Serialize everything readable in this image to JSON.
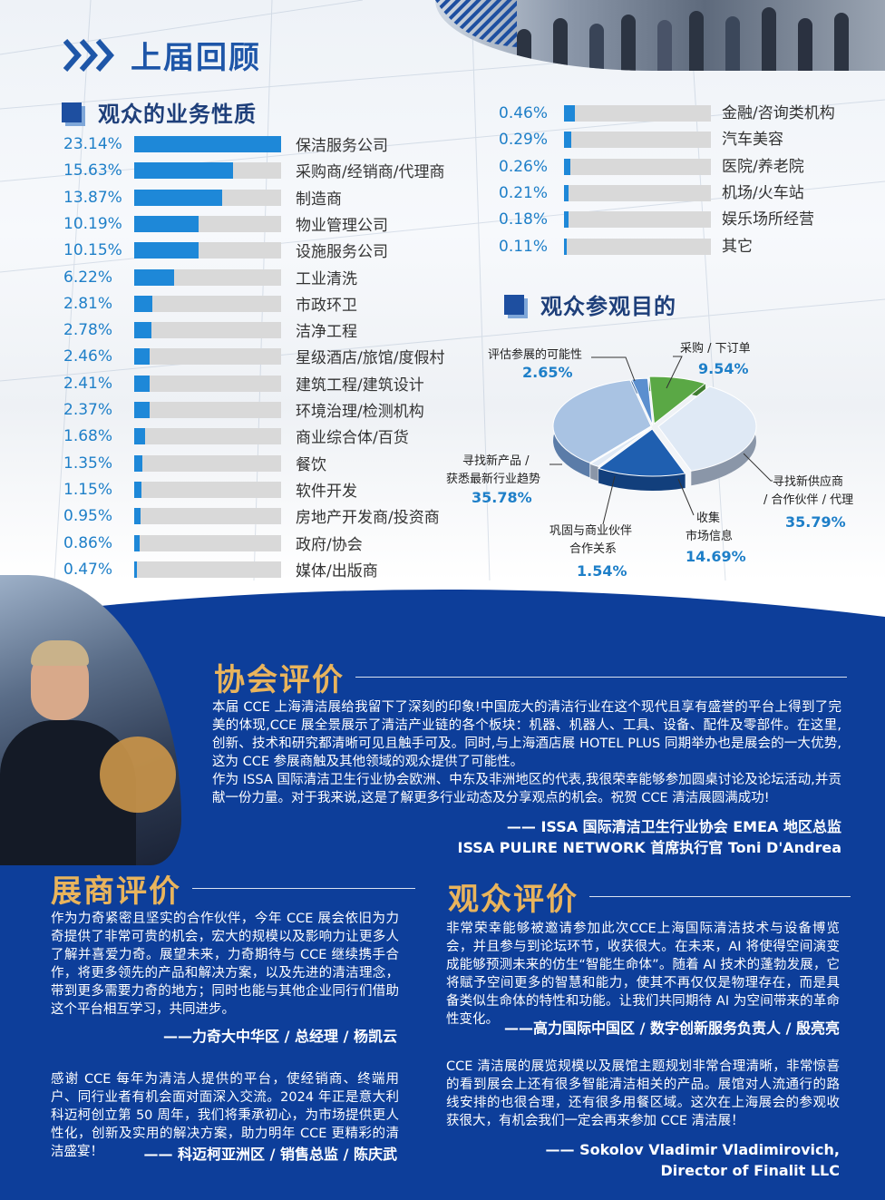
{
  "header": {
    "title": "上届回顾"
  },
  "business": {
    "title": "观众的业务性质",
    "items": [
      {
        "pct": "23.14%",
        "value": 23.14,
        "label": "保洁服务公司"
      },
      {
        "pct": "15.63%",
        "value": 15.63,
        "label": "采购商/经销商/代理商"
      },
      {
        "pct": "13.87%",
        "value": 13.87,
        "label": "制造商"
      },
      {
        "pct": "10.19%",
        "value": 10.19,
        "label": "物业管理公司"
      },
      {
        "pct": "10.15%",
        "value": 10.15,
        "label": "设施服务公司"
      },
      {
        "pct": "6.22%",
        "value": 6.22,
        "label": "工业清洗"
      },
      {
        "pct": "2.81%",
        "value": 2.81,
        "label": "市政环卫"
      },
      {
        "pct": "2.78%",
        "value": 2.78,
        "label": "洁净工程"
      },
      {
        "pct": "2.46%",
        "value": 2.46,
        "label": "星级酒店/旅馆/度假村"
      },
      {
        "pct": "2.41%",
        "value": 2.41,
        "label": "建筑工程/建筑设计"
      },
      {
        "pct": "2.37%",
        "value": 2.37,
        "label": "环境治理/检测机构"
      },
      {
        "pct": "1.68%",
        "value": 1.68,
        "label": "商业综合体/百货"
      },
      {
        "pct": "1.35%",
        "value": 1.35,
        "label": "餐饮"
      },
      {
        "pct": "1.15%",
        "value": 1.15,
        "label": "软件开发"
      },
      {
        "pct": "0.95%",
        "value": 0.95,
        "label": "房地产开发商/投资商"
      },
      {
        "pct": "0.86%",
        "value": 0.86,
        "label": "政府/协会"
      },
      {
        "pct": "0.47%",
        "value": 0.47,
        "label": "媒体/出版商"
      }
    ],
    "items_right": [
      {
        "pct": "0.46%",
        "value": 0.46,
        "label": "金融/咨询类机构"
      },
      {
        "pct": "0.29%",
        "value": 0.29,
        "label": "汽车美容"
      },
      {
        "pct": "0.26%",
        "value": 0.26,
        "label": "医院/养老院"
      },
      {
        "pct": "0.21%",
        "value": 0.21,
        "label": "机场/火车站"
      },
      {
        "pct": "0.18%",
        "value": 0.18,
        "label": "娱乐场所经营"
      },
      {
        "pct": "0.11%",
        "value": 0.11,
        "label": "其它"
      }
    ]
  },
  "purpose": {
    "title": "观众参观目的",
    "colors": {
      "light": "#a9c3e3",
      "mid": "#5b8fcf",
      "dark": "#1f5fb0",
      "green": "#5aa845",
      "pale": "#dfe9f5"
    }
  },
  "chart_data": [
    {
      "type": "bar",
      "title": "观众的业务性质",
      "categories": [
        "保洁服务公司",
        "采购商/经销商/代理商",
        "制造商",
        "物业管理公司",
        "设施服务公司",
        "工业清洗",
        "市政环卫",
        "洁净工程",
        "星级酒店/旅馆/度假村",
        "建筑工程/建筑设计",
        "环境治理/检测机构",
        "商业综合体/百货",
        "餐饮",
        "软件开发",
        "房地产开发商/投资商",
        "政府/协会",
        "媒体/出版商",
        "金融/咨询类机构",
        "汽车美容",
        "医院/养老院",
        "机场/火车站",
        "娱乐场所经营",
        "其它"
      ],
      "values": [
        23.14,
        15.63,
        13.87,
        10.19,
        10.15,
        6.22,
        2.81,
        2.78,
        2.46,
        2.41,
        2.37,
        1.68,
        1.35,
        1.15,
        0.95,
        0.86,
        0.47,
        0.46,
        0.29,
        0.26,
        0.21,
        0.18,
        0.11
      ]
    },
    {
      "type": "pie",
      "title": "观众参观目的",
      "slices": [
        {
          "label_lines": [
            "采购 / 下订单"
          ],
          "value": 9.54,
          "display": "9.54%"
        },
        {
          "label_lines": [
            "寻找新供应商",
            "/ 合作伙伴 / 代理"
          ],
          "value": 35.79,
          "display": "35.79%"
        },
        {
          "label_lines": [
            "收集",
            "市场信息"
          ],
          "value": 14.69,
          "display": "14.69%"
        },
        {
          "label_lines": [
            "巩固与商业伙伴",
            "合作关系"
          ],
          "value": 1.54,
          "display": "1.54%"
        },
        {
          "label_lines": [
            "寻找新产品 /",
            "获悉最新行业趋势"
          ],
          "value": 35.78,
          "display": "35.78%"
        },
        {
          "label_lines": [
            "评估参展的可能性"
          ],
          "value": 2.65,
          "display": "2.65%"
        }
      ]
    }
  ],
  "association": {
    "heading": "协会评价",
    "paragraphs": [
      "本届 CCE 上海清洁展给我留下了深刻的印象!中国庞大的清洁行业在这个现代且享有盛誉的平台上得到了完美的体现,CCE 展全景展示了清洁产业链的各个板块：机器、机器人、工具、设备、配件及零部件。在这里,创新、技术和研究都清晰可见且触手可及。同时,与上海酒店展 HOTEL PLUS 同期举办也是展会的一大优势,这为 CCE 参展商触及其他领域的观众提供了可能性。",
      "作为 ISSA 国际清洁卫生行业协会欧洲、中东及非洲地区的代表,我很荣幸能够参加圆桌讨论及论坛活动,并贡献一份力量。对于我来说,这是了解更多行业动态及分享观点的机会。祝贺 CCE 清洁展圆满成功!"
    ],
    "sign1": "—— ISSA 国际清洁卫生行业协会 EMEA 地区总监",
    "sign2": "ISSA PULIRE NETWORK 首席执行官 Toni D'Andrea"
  },
  "exhibitor": {
    "heading": "展商评价",
    "quote1": "作为力奇紧密且坚实的合作伙伴，今年 CCE 展会依旧为力奇提供了非常可贵的机会，宏大的规模以及影响力让更多人了解并喜爱力奇。展望未来，力奇期待与 CCE 继续携手合作，将更多领先的产品和解决方案，以及先进的清洁理念，带到更多需要力奇的地方；同时也能与其他企业同行们借助这个平台相互学习，共同进步。",
    "sign1": "——力奇大中华区 / 总经理 / 杨凯云",
    "quote2": "感谢 CCE 每年为清洁人提供的平台，使经销商、终端用户、同行业者有机会面对面深入交流。2024 年正是意大利科迈柯创立第 50 周年，我们将秉承初心，为市场提供更人性化，创新及实用的解决方案，助力明年 CCE 更精彩的清洁盛宴！",
    "sign2": "—— 科迈柯亚洲区 / 销售总监 / 陈庆武"
  },
  "visitor": {
    "heading": "观众评价",
    "quote1": "非常荣幸能够被邀请参加此次CCE上海国际清洁技术与设备博览会，并且参与到论坛环节，收获很大。在未来，AI 将使得空间演变成能够预测未来的仿生“智能生命体”。随着 AI 技术的蓬勃发展，它将赋予空间更多的智慧和能力，使其不再仅仅是物理存在，而是具备类似生命体的特性和功能。让我们共同期待 AI 为空间带来的革命性变化。",
    "sign1": "——高力国际中国区 / 数字创新服务负责人 / 殷亮亮",
    "quote2": "CCE 清洁展的展览规模以及展馆主题规划非常合理清晰，非常惊喜的看到展会上还有很多智能清洁相关的产品。展馆对人流通行的路线安排的也很合理，还有很多用餐区域。这次在上海展会的参观收获很大，有机会我们一定会再来参加 CCE 清洁展！",
    "sign2": "—— Sokolov Vladimir Vladimirovich,",
    "sign3": "Director of Finalit LLC"
  }
}
